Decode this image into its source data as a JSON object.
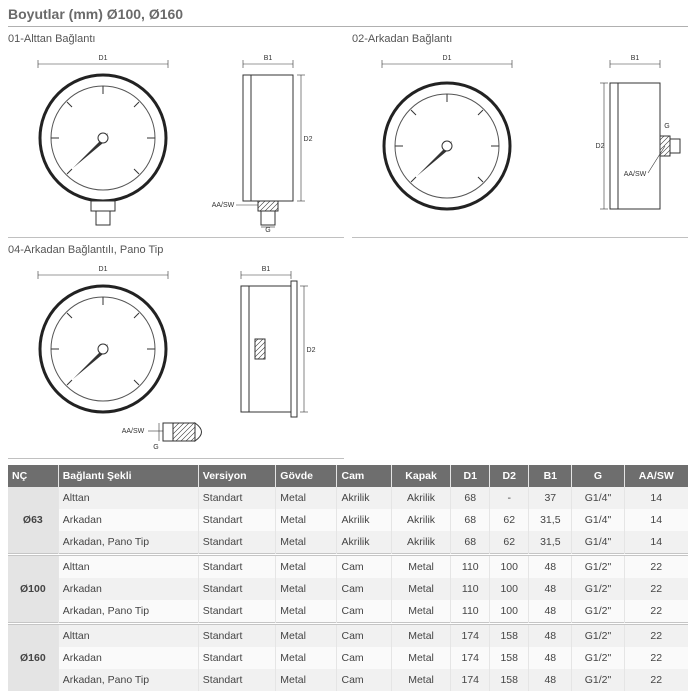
{
  "title": "Boyutlar (mm) Ø100, Ø160",
  "diagrams": [
    {
      "title": "01-Alttan Bağlantı"
    },
    {
      "title": "02-Arkadan Bağlantı"
    },
    {
      "title": "04-Arkadan Bağlantılı, Pano Tip"
    }
  ],
  "dim_labels": {
    "D1": "D1",
    "D2": "D2",
    "B1": "B1",
    "G": "G",
    "AASW": "AA/SW"
  },
  "table": {
    "columns": [
      "NÇ",
      "Bağlantı Şekli",
      "Versiyon",
      "Gövde",
      "Cam",
      "Kapak",
      "D1",
      "D2",
      "B1",
      "G",
      "AA/SW"
    ],
    "groups": [
      {
        "nc": "Ø63",
        "rows": [
          [
            "Alttan",
            "Standart",
            "Metal",
            "Akrilik",
            "Akrilik",
            "68",
            "-",
            "37",
            "G1/4\"",
            "14"
          ],
          [
            "Arkadan",
            "Standart",
            "Metal",
            "Akrilik",
            "Akrilik",
            "68",
            "62",
            "31,5",
            "G1/4\"",
            "14"
          ],
          [
            "Arkadan, Pano Tip",
            "Standart",
            "Metal",
            "Akrilik",
            "Akrilik",
            "68",
            "62",
            "31,5",
            "G1/4\"",
            "14"
          ]
        ]
      },
      {
        "nc": "Ø100",
        "rows": [
          [
            "Alttan",
            "Standart",
            "Metal",
            "Cam",
            "Metal",
            "110",
            "100",
            "48",
            "G1/2\"",
            "22"
          ],
          [
            "Arkadan",
            "Standart",
            "Metal",
            "Cam",
            "Metal",
            "110",
            "100",
            "48",
            "G1/2\"",
            "22"
          ],
          [
            "Arkadan, Pano Tip",
            "Standart",
            "Metal",
            "Cam",
            "Metal",
            "110",
            "100",
            "48",
            "G1/2\"",
            "22"
          ]
        ]
      },
      {
        "nc": "Ø160",
        "rows": [
          [
            "Alttan",
            "Standart",
            "Metal",
            "Cam",
            "Metal",
            "174",
            "158",
            "48",
            "G1/2\"",
            "22"
          ],
          [
            "Arkadan",
            "Standart",
            "Metal",
            "Cam",
            "Metal",
            "174",
            "158",
            "48",
            "G1/2\"",
            "22"
          ],
          [
            "Arkadan, Pano Tip",
            "Standart",
            "Metal",
            "Cam",
            "Metal",
            "174",
            "158",
            "48",
            "G1/2\"",
            "22"
          ]
        ]
      }
    ]
  },
  "colors": {
    "header_bg": "#6e6e6e",
    "row_odd": "#f1f1f1",
    "row_even": "#fafafa",
    "nc_bg": "#e4e4e4",
    "border": "#c5c5c5"
  }
}
